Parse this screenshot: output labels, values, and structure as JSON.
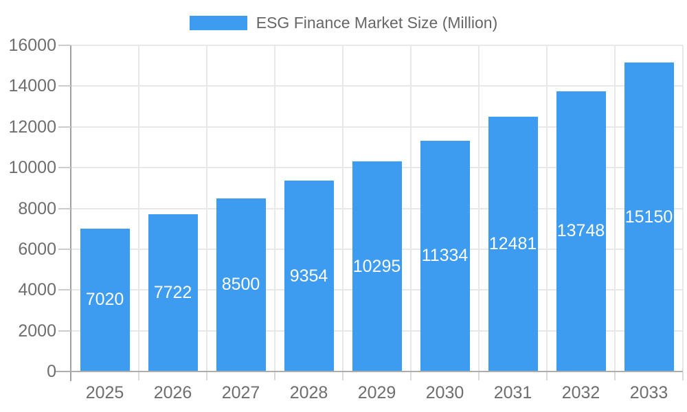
{
  "chart_data": {
    "type": "bar",
    "title": "ESG Finance Market Size (Million)",
    "legend": [
      "ESG Finance Market Size (Million)"
    ],
    "legend_position": "top-center",
    "categories": [
      "2025",
      "2026",
      "2027",
      "2028",
      "2029",
      "2030",
      "2031",
      "2032",
      "2033"
    ],
    "values": [
      7020,
      7722,
      8500,
      9354,
      10295,
      11334,
      12481,
      13748,
      15150
    ],
    "value_labels_inside_bars": true,
    "xlabel": "",
    "ylabel": "",
    "ylim": [
      0,
      16000
    ],
    "yticks": [
      0,
      2000,
      4000,
      6000,
      8000,
      10000,
      12000,
      14000,
      16000
    ],
    "grid": true,
    "colors": {
      "bar": "#3d9cf0",
      "bar_value_text": "#ffffff",
      "axis_text": "#6e6e6e",
      "legend_text": "#666666",
      "gridline": "#e8e8e8",
      "axis_line": "#a6a6a6"
    }
  }
}
